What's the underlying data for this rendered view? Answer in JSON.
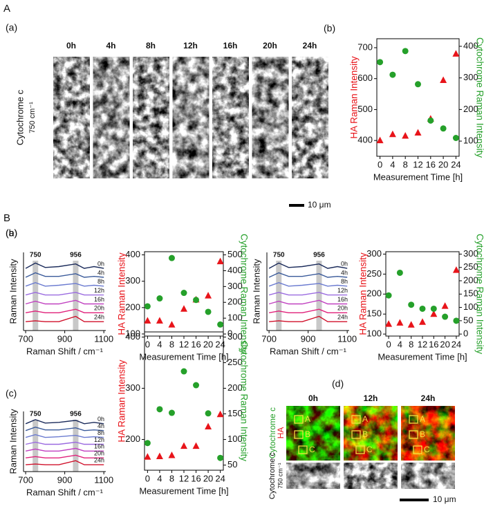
{
  "panel_A": {
    "label": "A",
    "sub_label": "(a)",
    "row_label": "Cytochrome c",
    "row_sublabel": "750 cm⁻¹",
    "time_labels": [
      "0h",
      "4h",
      "8h",
      "12h",
      "16h",
      "20h",
      "24h"
    ],
    "scale_bar": "10 μm"
  },
  "panel_B": {
    "label": "B",
    "d": {
      "label": "(d)",
      "time_labels": [
        "0h",
        "12h",
        "24h"
      ],
      "row1_label_green": "Cytochrome c",
      "row1_label_red": "HA",
      "row2_label": "Cytochrome c",
      "row2_sublabel": "750 cm⁻¹",
      "regions": [
        "A",
        "B",
        "C"
      ],
      "scale_bar": "10 μm"
    }
  },
  "chart_data": [
    {
      "type": "scatter",
      "label": "(b)",
      "x": [
        0,
        4,
        8,
        12,
        16,
        20,
        24
      ],
      "xlim": [
        -1,
        25
      ],
      "xticks": [
        0,
        4,
        8,
        12,
        16,
        20,
        24
      ],
      "xlabel": "Measurement Time [h]",
      "ylabel": "HA Raman Intensity",
      "y2label": "Cytochrome Raman Intensity",
      "ylim": [
        349,
        729
      ],
      "yticks": [
        400,
        500,
        600,
        700
      ],
      "y2lim": [
        52,
        424
      ],
      "y2ticks": [
        100,
        200,
        300,
        400
      ],
      "series": [
        {
          "color": "#e8141a",
          "marker": "triangle",
          "values": [
            400,
            420,
            415,
            425,
            470,
            595,
            680
          ]
        },
        {
          "color": "#25a02a",
          "marker": "circle",
          "axis": "y2",
          "values": [
            350,
            310,
            385,
            280,
            165,
            140,
            110
          ]
        }
      ]
    },
    {
      "type": "spectra",
      "label": "(a)",
      "x": [
        700,
        750,
        800,
        870,
        956,
        1000,
        1050,
        1100
      ],
      "xlim": [
        689,
        1110
      ],
      "xticks": [
        700,
        900,
        1100
      ],
      "ylim": [
        0,
        8.8
      ],
      "xlabel": "Raman Shift / cm⁻¹",
      "ylabel": "Raman Intensity",
      "highlights": [
        750,
        956
      ],
      "series": [
        {
          "name": "0h",
          "color": "#1a2a5a",
          "values": [
            7.0,
            7.6,
            7.1,
            7.2,
            7.5,
            7.0,
            7.2,
            7.0
          ]
        },
        {
          "name": "4h",
          "color": "#3a5a9a",
          "values": [
            6.0,
            6.5,
            6.1,
            6.1,
            6.4,
            6.0,
            6.1,
            6.0
          ]
        },
        {
          "name": "8h",
          "color": "#6a7ad0",
          "values": [
            5.0,
            5.4,
            5.0,
            5.1,
            5.3,
            5.0,
            5.1,
            5.0
          ]
        },
        {
          "name": "12h",
          "color": "#9a6ae0",
          "values": [
            4.0,
            4.3,
            4.0,
            4.0,
            4.3,
            4.0,
            4.0,
            4.0
          ]
        },
        {
          "name": "16h",
          "color": "#c040c0",
          "values": [
            3.0,
            3.3,
            3.0,
            3.0,
            3.4,
            3.0,
            3.0,
            3.0
          ]
        },
        {
          "name": "20h",
          "color": "#e0207a",
          "values": [
            2.0,
            2.2,
            2.0,
            2.0,
            2.4,
            2.0,
            2.0,
            2.0
          ]
        },
        {
          "name": "24h",
          "color": "#d0102a",
          "values": [
            1.0,
            1.1,
            1.0,
            1.0,
            1.6,
            1.0,
            1.0,
            1.0
          ]
        }
      ]
    },
    {
      "type": "scatter",
      "x": [
        0,
        4,
        8,
        12,
        16,
        20,
        24
      ],
      "xlim": [
        -1,
        25
      ],
      "xticks": [
        0,
        4,
        8,
        12,
        16,
        20,
        24
      ],
      "xlabel": "Measurement Time [h]",
      "ylabel": "HA Raman Intensity",
      "y2label": "Cytochrome Raman Intensity",
      "ylim": [
        92,
        412
      ],
      "yticks": [
        100,
        200,
        300,
        400
      ],
      "y2lim": [
        -13,
        520
      ],
      "y2ticks": [
        0,
        100,
        200,
        300,
        400,
        500
      ],
      "series": [
        {
          "color": "#e8141a",
          "marker": "triangle",
          "values": [
            150,
            150,
            135,
            195,
            230,
            245,
            375
          ]
        },
        {
          "color": "#25a02a",
          "marker": "circle",
          "axis": "y2",
          "values": [
            175,
            225,
            480,
            260,
            215,
            140,
            60
          ]
        }
      ]
    },
    {
      "type": "spectra",
      "label": "(b)",
      "x": [
        700,
        750,
        800,
        870,
        956,
        1000,
        1050,
        1100
      ],
      "xlim": [
        689,
        1110
      ],
      "xticks": [
        700,
        900,
        1100
      ],
      "ylim": [
        0,
        8.8
      ],
      "xlabel": "Raman Shift / cm⁻¹",
      "ylabel": "Raman Intensity",
      "highlights": [
        750,
        956
      ],
      "series": [
        {
          "name": "0h",
          "color": "#1a2a5a",
          "values": [
            7.0,
            7.6,
            7.1,
            7.2,
            7.5,
            7.0,
            7.2,
            7.0
          ]
        },
        {
          "name": "4h",
          "color": "#3a5a9a",
          "values": [
            6.0,
            6.5,
            6.1,
            6.1,
            6.4,
            6.0,
            6.1,
            6.0
          ]
        },
        {
          "name": "8h",
          "color": "#6a7ad0",
          "values": [
            5.0,
            5.4,
            5.0,
            5.1,
            5.3,
            5.0,
            5.1,
            5.0
          ]
        },
        {
          "name": "12h",
          "color": "#9a6ae0",
          "values": [
            4.0,
            4.3,
            4.0,
            4.0,
            4.3,
            4.0,
            4.0,
            4.0
          ]
        },
        {
          "name": "16h",
          "color": "#c040c0",
          "values": [
            3.0,
            3.3,
            3.0,
            3.0,
            3.4,
            3.0,
            3.0,
            3.0
          ]
        },
        {
          "name": "20h",
          "color": "#e0207a",
          "values": [
            2.0,
            2.2,
            2.0,
            2.0,
            2.4,
            2.0,
            2.0,
            2.0
          ]
        },
        {
          "name": "24h",
          "color": "#d0102a",
          "values": [
            1.0,
            1.1,
            1.0,
            1.0,
            1.6,
            1.0,
            1.0,
            1.0
          ]
        }
      ]
    },
    {
      "type": "scatter",
      "x": [
        0,
        4,
        8,
        12,
        16,
        20,
        24
      ],
      "xlim": [
        -1,
        25
      ],
      "xticks": [
        0,
        4,
        8,
        12,
        16,
        20,
        24
      ],
      "xlabel": "Measurement Time [h]",
      "ylabel": "HA Raman Intensity",
      "y2label": "Cytochrome Raman Intensity",
      "ylim": [
        95,
        306
      ],
      "yticks": [
        100,
        150,
        200,
        250,
        300
      ],
      "y2lim": [
        -7.5,
        309
      ],
      "y2ticks": [
        0,
        50,
        100,
        150,
        200,
        250,
        300
      ],
      "series": [
        {
          "color": "#e8141a",
          "marker": "triangle",
          "values": [
            125,
            128,
            123,
            130,
            150,
            170,
            260
          ]
        },
        {
          "color": "#25a02a",
          "marker": "circle",
          "axis": "y2",
          "values": [
            145,
            230,
            110,
            95,
            95,
            65,
            50
          ]
        }
      ]
    },
    {
      "type": "spectra",
      "label": "(c)",
      "x": [
        700,
        750,
        800,
        870,
        956,
        1000,
        1050,
        1100
      ],
      "xlim": [
        689,
        1110
      ],
      "xticks": [
        700,
        900,
        1100
      ],
      "ylim": [
        0,
        8.8
      ],
      "xlabel": "Raman Shift / cm⁻¹",
      "ylabel": "Raman Intensity",
      "highlights": [
        750,
        956
      ],
      "series": [
        {
          "name": "0h",
          "color": "#1a2a5a",
          "values": [
            7.0,
            7.6,
            7.1,
            7.2,
            7.5,
            7.0,
            7.2,
            7.0
          ]
        },
        {
          "name": "4h",
          "color": "#3a5a9a",
          "values": [
            6.0,
            6.5,
            6.1,
            6.1,
            6.4,
            6.0,
            6.1,
            6.0
          ]
        },
        {
          "name": "8h",
          "color": "#6a7ad0",
          "values": [
            5.0,
            5.4,
            5.0,
            5.1,
            5.3,
            5.0,
            5.1,
            5.0
          ]
        },
        {
          "name": "12h",
          "color": "#9a6ae0",
          "values": [
            4.0,
            4.3,
            4.0,
            4.0,
            4.3,
            4.0,
            4.0,
            4.0
          ]
        },
        {
          "name": "16h",
          "color": "#c040c0",
          "values": [
            3.0,
            3.3,
            3.0,
            3.0,
            3.4,
            3.0,
            3.0,
            3.0
          ]
        },
        {
          "name": "20h",
          "color": "#e0207a",
          "values": [
            2.0,
            2.2,
            2.0,
            2.0,
            2.4,
            2.0,
            2.0,
            2.0
          ]
        },
        {
          "name": "24h",
          "color": "#d0102a",
          "values": [
            1.0,
            1.1,
            1.0,
            1.0,
            1.6,
            1.0,
            1.0,
            1.0
          ]
        }
      ]
    },
    {
      "type": "scatter",
      "x": [
        0,
        4,
        8,
        12,
        16,
        20,
        24
      ],
      "xlim": [
        -1,
        25
      ],
      "xticks": [
        0,
        4,
        8,
        12,
        16,
        20,
        24
      ],
      "xlabel": "Measurement Time [h]",
      "ylabel": "HA Raman Intensity",
      "y2label": "Cytochrome Raman Intensity",
      "ylim": [
        140,
        410
      ],
      "yticks": [
        200,
        300,
        400
      ],
      "y2lim": [
        40,
        310
      ],
      "y2ticks": [
        50,
        100,
        150,
        200,
        250,
        300
      ],
      "series": [
        {
          "color": "#e8141a",
          "marker": "triangle",
          "values": [
            166,
            167,
            169,
            187,
            187,
            225,
            249
          ]
        },
        {
          "color": "#25a02a",
          "marker": "circle",
          "axis": "y2",
          "values": [
            93,
            159,
            152,
            233,
            206,
            151,
            64
          ]
        }
      ]
    }
  ]
}
